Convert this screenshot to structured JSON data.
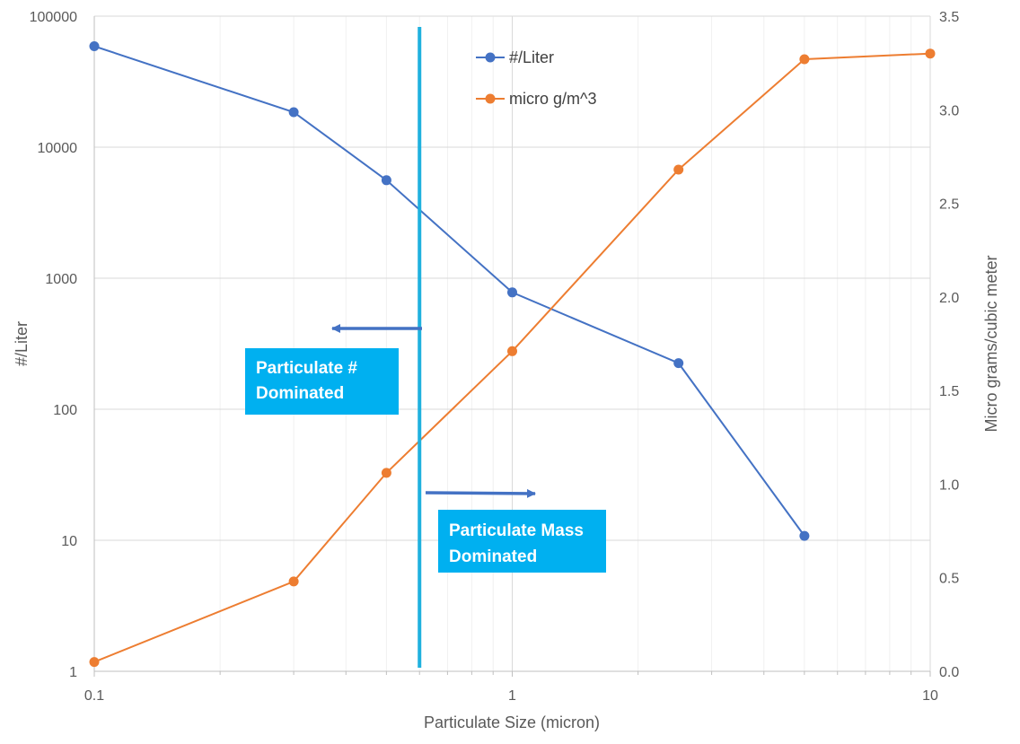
{
  "chart_data": {
    "type": "line",
    "xlabel": "Particulate Size (micron)",
    "ylabel": "#/Liter",
    "y2label": "Micro grams/cubic meter",
    "x_scale": "log",
    "y_scale": "log",
    "xlim": [
      0.1,
      10
    ],
    "ylim": [
      1,
      100000
    ],
    "y2lim": [
      0,
      3.5
    ],
    "x_ticks": [
      "0.1",
      "1",
      "10"
    ],
    "y_ticks": [
      "1",
      "10",
      "100",
      "1000",
      "10000",
      "100000"
    ],
    "y2_ticks": [
      "0.0",
      "0.5",
      "1.0",
      "1.5",
      "2.0",
      "2.5",
      "3.0",
      "3.5"
    ],
    "grid": true,
    "legend_position": "top-center",
    "series": [
      {
        "name": "#/Liter",
        "axis": "left",
        "color": "#4472C4",
        "x": [
          0.1,
          0.3,
          0.5,
          1,
          2.5,
          5
        ],
        "values": [
          59000,
          18500,
          5600,
          780,
          225,
          10.8
        ]
      },
      {
        "name": "micro g/m^3",
        "axis": "right",
        "color": "#ED7D31",
        "x": [
          0.1,
          0.3,
          0.5,
          1,
          2.5,
          5,
          10
        ],
        "values": [
          0.05,
          0.48,
          1.06,
          1.71,
          2.68,
          3.27,
          3.3
        ]
      }
    ],
    "annotations": {
      "divider_x": 0.6,
      "divider_color": "#1FB1DE",
      "arrow_color": "#4472C4",
      "box_color": "#00B0F0",
      "left_box": {
        "text_line1": "Particulate #",
        "text_line2": "Dominated"
      },
      "right_box": {
        "text_line1": "Particulate Mass",
        "text_line2": "Dominated"
      }
    }
  }
}
